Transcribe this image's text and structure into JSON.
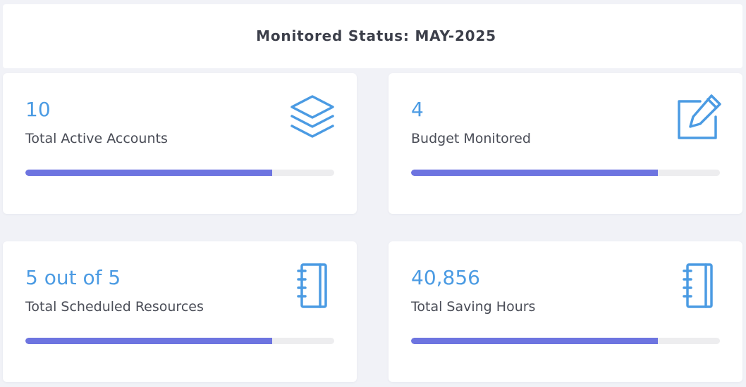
{
  "header": {
    "title": "Monitored Status: MAY-2025"
  },
  "colors": {
    "accent": "#4b9be3",
    "progress": "#6d74e0",
    "track": "#ededef"
  },
  "cards": [
    {
      "value": "10",
      "label": "Total Active Accounts",
      "icon": "layers-icon",
      "progress": 0.8
    },
    {
      "value": "4",
      "label": "Budget Monitored",
      "icon": "edit-icon",
      "progress": 0.8
    },
    {
      "value": "5 out of 5",
      "label": "Total Scheduled Resources",
      "icon": "notebook-icon",
      "progress": 0.8
    },
    {
      "value": "40,856",
      "label": "Total Saving Hours",
      "icon": "notebook-icon",
      "progress": 0.8
    }
  ]
}
